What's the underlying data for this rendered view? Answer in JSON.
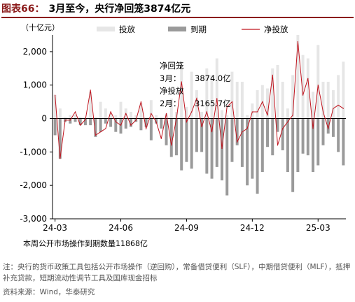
{
  "title": {
    "prefix": "图表66：",
    "text": "3月至今，央行净回笼3874亿元"
  },
  "chart_data": {
    "type": "bar",
    "unit_label": "（十亿元）",
    "ylim": [
      -3000,
      2500
    ],
    "yticks": [
      "2,000",
      "1,000",
      "0",
      "-1,000",
      "-2,000",
      "-3,000"
    ],
    "ytick_values": [
      2000,
      1000,
      0,
      -1000,
      -2000,
      -3000
    ],
    "xtick_labels": [
      "24-03",
      "24-06",
      "24-09",
      "24-12",
      "25-03"
    ],
    "xtick_index": [
      0,
      13,
      26,
      39,
      52
    ],
    "n_weeks": 58,
    "series": [
      {
        "name": "投放",
        "color": "#e6e6e6",
        "values": [
          700,
          300,
          50,
          100,
          120,
          50,
          20,
          800,
          50,
          500,
          300,
          150,
          100,
          500,
          300,
          200,
          100,
          450,
          0,
          550,
          100,
          50,
          150,
          600,
          200,
          1600,
          350,
          1400,
          850,
          200,
          1500,
          1300,
          1800,
          250,
          100,
          1400,
          1100,
          1100,
          100,
          450,
          850,
          1000,
          900,
          1500,
          1600,
          1100,
          300,
          1300,
          2500,
          1900,
          1800,
          800,
          2200,
          1100,
          1100,
          850,
          1300,
          1700
        ]
      },
      {
        "name": "到期",
        "color": "#9a9a9a",
        "values": [
          -500,
          -1200,
          -100,
          -150,
          -100,
          -200,
          -200,
          -200,
          -550,
          -400,
          -150,
          -250,
          -400,
          -450,
          -300,
          -250,
          -100,
          -350,
          -250,
          -650,
          -150,
          -300,
          -800,
          -1150,
          -1100,
          -1550,
          -1300,
          -1500,
          -1000,
          -1000,
          -1650,
          -1800,
          -1450,
          -1850,
          -2300,
          -1300,
          -800,
          -1450,
          -2000,
          -1800,
          -2250,
          -1600,
          -850,
          -1100,
          -400,
          -950,
          -1600,
          -2200,
          -1600,
          -1050,
          -1100,
          -1600,
          -1400,
          -800,
          -450,
          -550,
          -1000,
          -1400
        ]
      },
      {
        "name": "净投放",
        "color": "#c0141e",
        "values": [
          700,
          -1200,
          -50,
          -50,
          200,
          -200,
          -30,
          850,
          -500,
          -400,
          -300,
          200,
          -100,
          -200,
          150,
          -200,
          -50,
          500,
          -300,
          150,
          -100,
          -600,
          150,
          -800,
          0,
          1100,
          -100,
          200,
          600,
          -250,
          200,
          -400,
          600,
          -900,
          350,
          500,
          -700,
          -400,
          -300,
          200,
          200,
          500,
          100,
          1300,
          -800,
          -300,
          -100,
          100,
          2300,
          700,
          1200,
          -300,
          1000,
          200,
          -300,
          300,
          400,
          300
        ]
      }
    ],
    "annotation": {
      "line1": "净回笼",
      "line2_label": "3月：",
      "line2_value": "3874.0亿",
      "line3": "净投放",
      "line4_label": "2月：",
      "line4_value": "3165.7亿"
    }
  },
  "footer_text": "本周公开市场操作到期数量11868亿",
  "note_text": "注：央行的货币政策工具包括公开市场操作（逆回购），常备借贷便利（SLF），中期借贷便利（MLF），抵押补充贷款，短期流动性调节工具及国库现金招标",
  "source_text": "资料来源：Wind，华泰研究"
}
